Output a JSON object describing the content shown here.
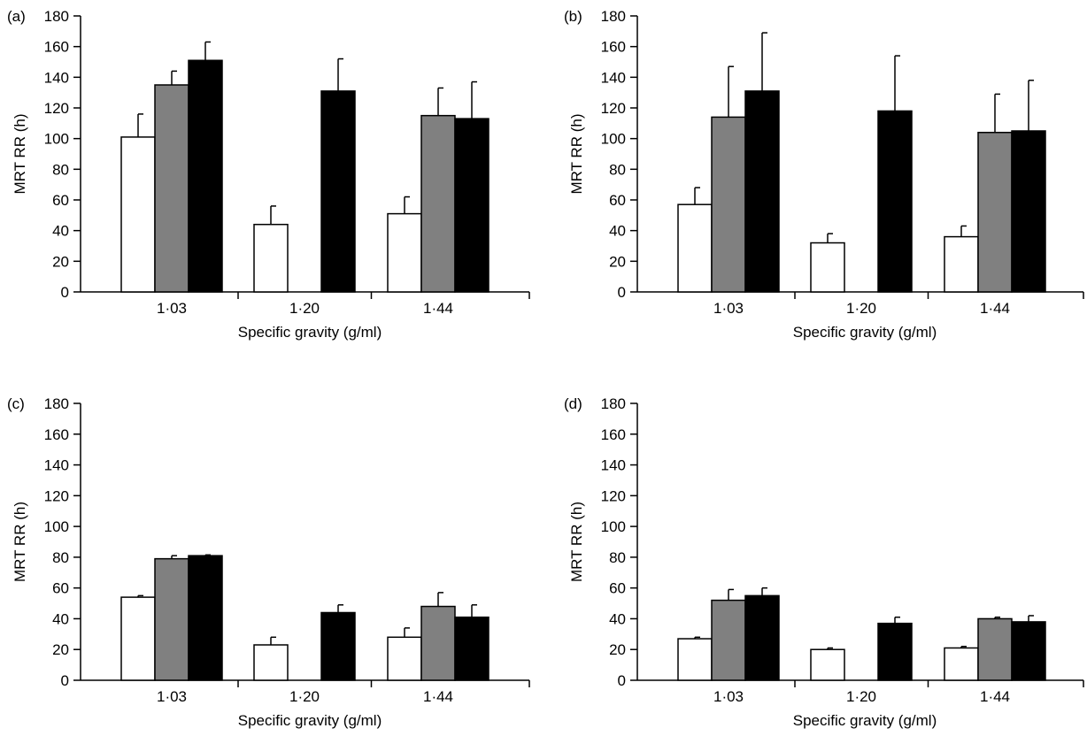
{
  "colors": {
    "series_fill": [
      "#ffffff",
      "#808080",
      "#000000"
    ],
    "stroke": "#000000"
  },
  "chart_data": [
    {
      "type": "bar",
      "panel_label": "(a)",
      "categories": [
        "1·03",
        "1·20",
        "1·44"
      ],
      "xlabel": "Specific gravity (g/ml)",
      "ylabel": "MRT RR (h)",
      "ylim": [
        0,
        180
      ],
      "yticks": [
        0,
        20,
        40,
        60,
        80,
        100,
        120,
        140,
        160,
        180
      ],
      "grid": false,
      "series": [
        {
          "values": [
            101,
            44,
            51
          ],
          "errors": [
            15,
            12,
            11
          ]
        },
        {
          "values": [
            135,
            null,
            115
          ],
          "errors": [
            9,
            null,
            18
          ]
        },
        {
          "values": [
            151,
            131,
            113
          ],
          "errors": [
            12,
            21,
            24
          ]
        }
      ]
    },
    {
      "type": "bar",
      "panel_label": "(b)",
      "categories": [
        "1·03",
        "1·20",
        "1·44"
      ],
      "xlabel": "Specific gravity (g/ml)",
      "ylabel": "MRT RR (h)",
      "ylim": [
        0,
        180
      ],
      "yticks": [
        0,
        20,
        40,
        60,
        80,
        100,
        120,
        140,
        160,
        180
      ],
      "grid": false,
      "series": [
        {
          "values": [
            57,
            32,
            36
          ],
          "errors": [
            11,
            6,
            7
          ]
        },
        {
          "values": [
            114,
            null,
            104
          ],
          "errors": [
            33,
            null,
            25
          ]
        },
        {
          "values": [
            131,
            118,
            105
          ],
          "errors": [
            38,
            36,
            33
          ]
        }
      ]
    },
    {
      "type": "bar",
      "panel_label": "(c)",
      "categories": [
        "1·03",
        "1·20",
        "1·44"
      ],
      "xlabel": "Specific gravity (g/ml)",
      "ylabel": "MRT RR (h)",
      "ylim": [
        0,
        180
      ],
      "yticks": [
        0,
        20,
        40,
        60,
        80,
        100,
        120,
        140,
        160,
        180
      ],
      "grid": false,
      "series": [
        {
          "values": [
            54,
            23,
            28
          ],
          "errors": [
            1,
            5,
            6
          ]
        },
        {
          "values": [
            79,
            null,
            48
          ],
          "errors": [
            2,
            null,
            9
          ]
        },
        {
          "values": [
            81,
            44,
            41
          ],
          "errors": [
            0.5,
            5,
            8
          ]
        }
      ]
    },
    {
      "type": "bar",
      "panel_label": "(d)",
      "categories": [
        "1·03",
        "1·20",
        "1·44"
      ],
      "xlabel": "Specific gravity (g/ml)",
      "ylabel": "MRT RR (h)",
      "ylim": [
        0,
        180
      ],
      "yticks": [
        0,
        20,
        40,
        60,
        80,
        100,
        120,
        140,
        160,
        180
      ],
      "grid": false,
      "series": [
        {
          "values": [
            27,
            20,
            21
          ],
          "errors": [
            1,
            1,
            1
          ]
        },
        {
          "values": [
            52,
            null,
            40
          ],
          "errors": [
            7,
            null,
            1
          ]
        },
        {
          "values": [
            55,
            37,
            38
          ],
          "errors": [
            5,
            4,
            4
          ]
        }
      ]
    }
  ]
}
